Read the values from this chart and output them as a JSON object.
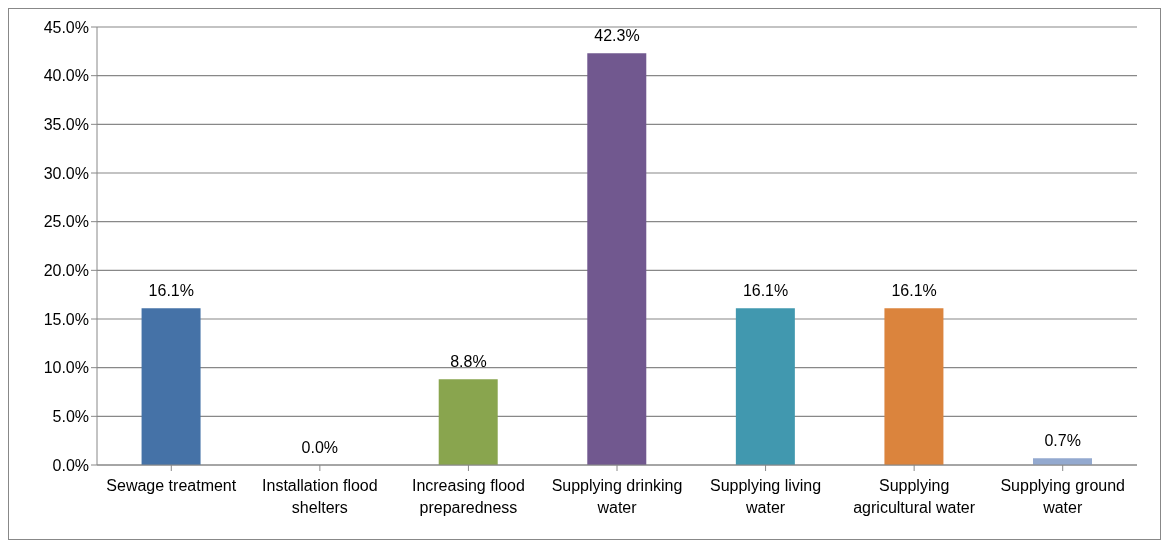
{
  "chart_data": {
    "type": "bar",
    "categories": [
      "Sewage treatment",
      "Installation flood shelters",
      "Increasing flood preparedness",
      "Supplying drinking water",
      "Supplying living water",
      "Supplying agricultural water",
      "Supplying ground water"
    ],
    "values": [
      16.1,
      0.0,
      8.8,
      42.3,
      16.1,
      16.1,
      0.7
    ],
    "colors": [
      "#4572a7",
      "#aa4643",
      "#89a54e",
      "#71588f",
      "#4198af",
      "#db843d",
      "#93a9cf"
    ],
    "value_labels": [
      "16.1%",
      "0.0%",
      "8.8%",
      "42.3%",
      "16.1%",
      "16.1%",
      "0.7%"
    ],
    "ylim": [
      0,
      45
    ],
    "yticks": [
      {
        "value": 0,
        "label": "0.0%"
      },
      {
        "value": 5,
        "label": "5.0%"
      },
      {
        "value": 10,
        "label": "10.0%"
      },
      {
        "value": 15,
        "label": "15.0%"
      },
      {
        "value": 20,
        "label": "20.0%"
      },
      {
        "value": 25,
        "label": "25.0%"
      },
      {
        "value": 30,
        "label": "30.0%"
      },
      {
        "value": 35,
        "label": "35.0%"
      },
      {
        "value": 40,
        "label": "40.0%"
      },
      {
        "value": 45,
        "label": "45.0%"
      }
    ],
    "grid": "y",
    "legend": false
  }
}
